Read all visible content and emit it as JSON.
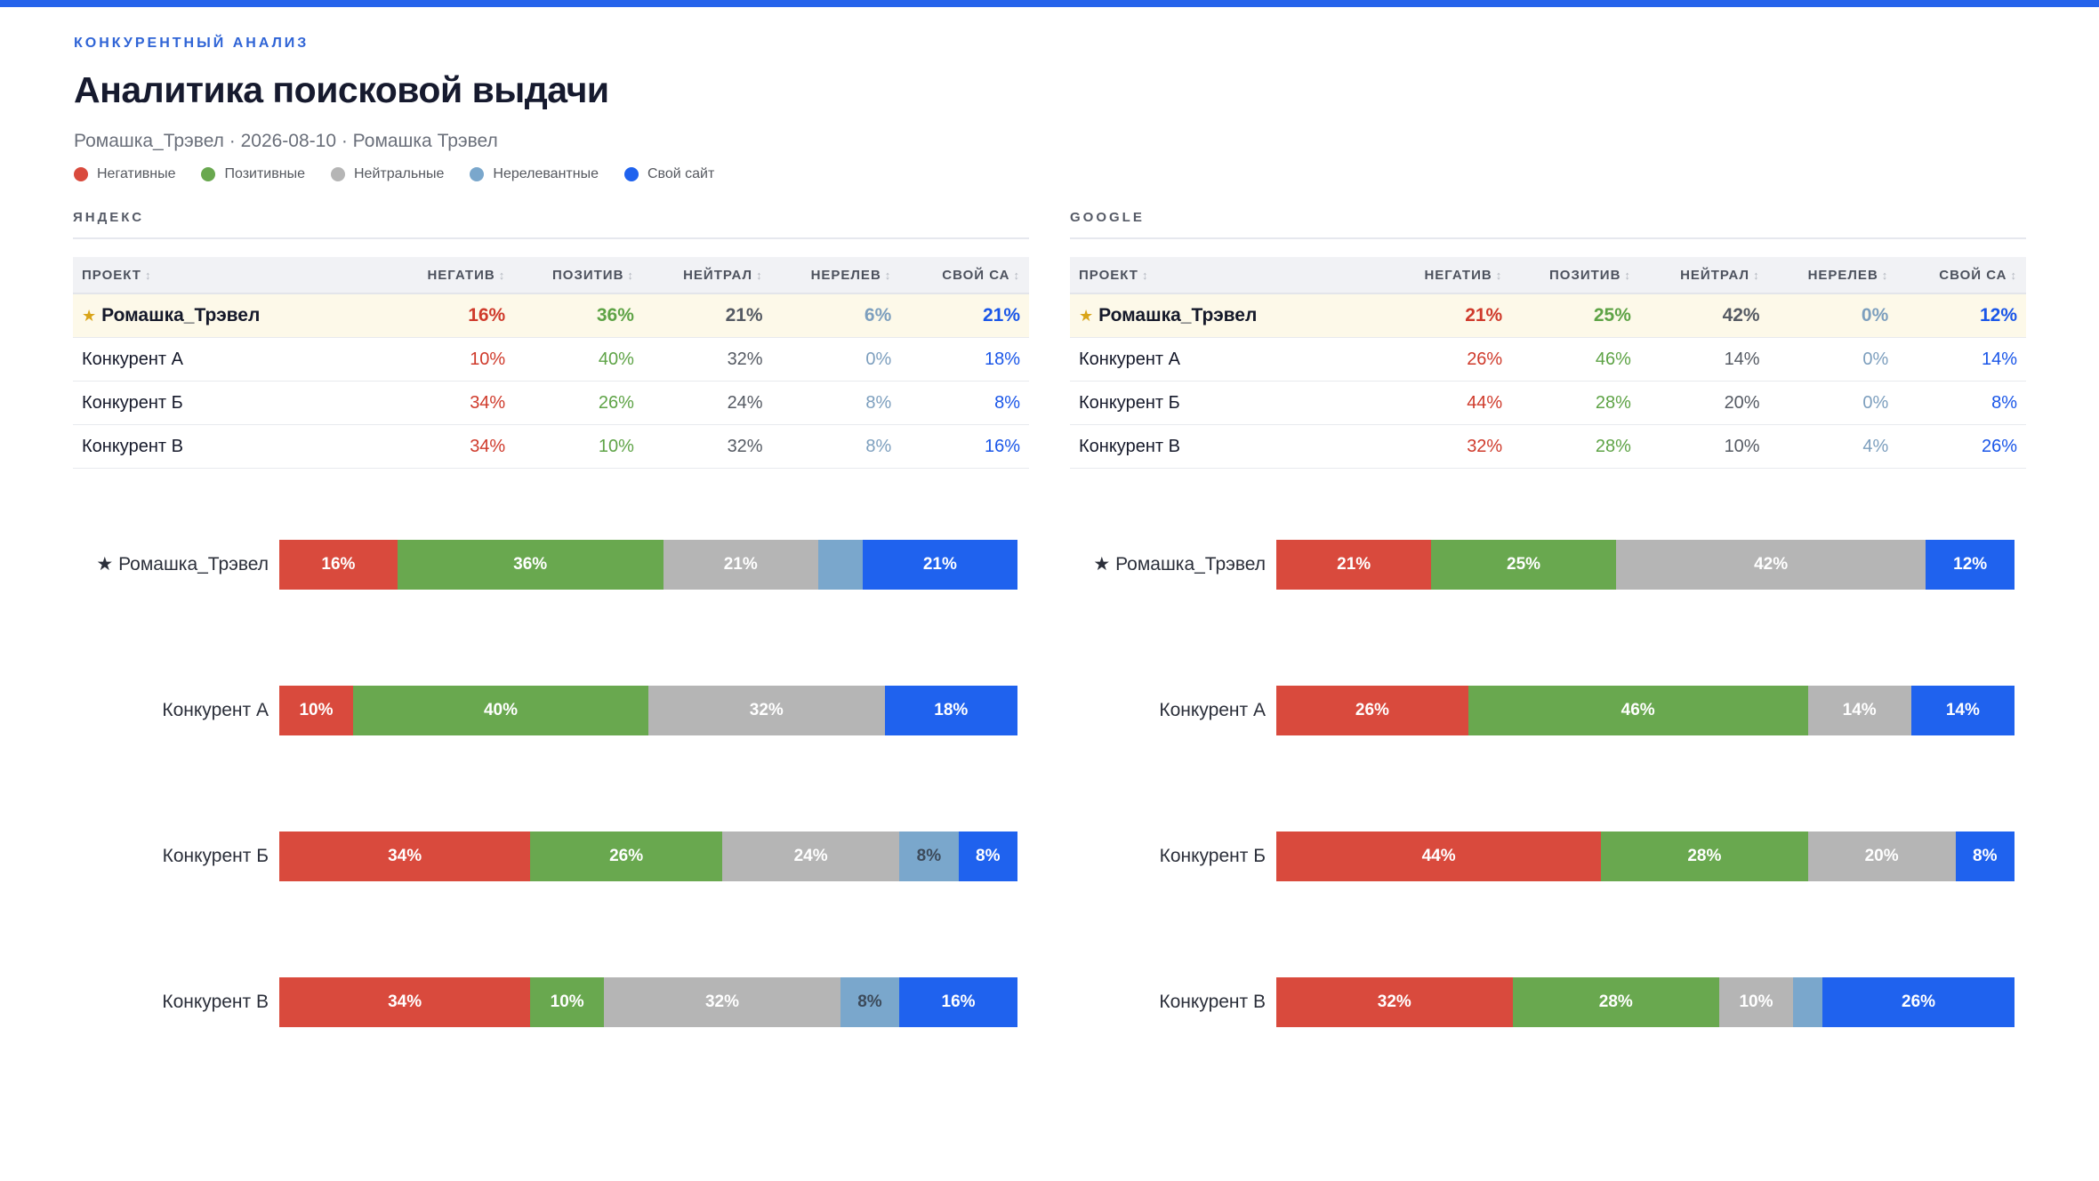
{
  "header": {
    "eyebrow": "КОНКУРЕНТНЫЙ АНАЛИЗ",
    "title": "Аналитика поисковой выдачи",
    "subtitle": "Ромашка_Трэвел · 2026-08-10 · Ромашка Трэвел"
  },
  "legend": [
    {
      "label": "Негативные",
      "color": "#d94a3d"
    },
    {
      "label": "Позитивные",
      "color": "#69a84f"
    },
    {
      "label": "Нейтральные",
      "color": "#b5b5b5"
    },
    {
      "label": "Нерелевантные",
      "color": "#7aa7cc"
    },
    {
      "label": "Свой сайт",
      "color": "#1f62ee"
    }
  ],
  "colors": {
    "neg": "#d94a3d",
    "pos": "#69a84f",
    "neu": "#b5b5b5",
    "irr": "#7aa7cc",
    "own": "#1f62ee",
    "accent": "#2563eb",
    "highlight_row": "#fdf9e9",
    "star": "#d9a418"
  },
  "star_icon": "★",
  "sort_icon": "↕",
  "columns": {
    "project": "ПРОЕКТ",
    "neg": "НЕГАТИВ",
    "pos": "ПОЗИТИВ",
    "neu": "НЕЙТРАЛ",
    "irr": "НЕРЕЛЕВ",
    "own": "СВОЙ СА"
  },
  "panels": [
    {
      "id": "yandex",
      "title": "ЯНДЕКС",
      "rows": [
        {
          "name": "Ромашка_Трэвел",
          "highlight": true,
          "neg": "16%",
          "pos": "36%",
          "neu": "21%",
          "irr": "6%",
          "own": "21%"
        },
        {
          "name": "Конкурент А",
          "highlight": false,
          "neg": "10%",
          "pos": "40%",
          "neu": "32%",
          "irr": "0%",
          "own": "18%"
        },
        {
          "name": "Конкурент Б",
          "highlight": false,
          "neg": "34%",
          "pos": "26%",
          "neu": "24%",
          "irr": "8%",
          "own": "8%"
        },
        {
          "name": "Конкурент В",
          "highlight": false,
          "neg": "34%",
          "pos": "10%",
          "neu": "32%",
          "irr": "8%",
          "own": "16%"
        }
      ]
    },
    {
      "id": "google",
      "title": "GOOGLE",
      "rows": [
        {
          "name": "Ромашка_Трэвел",
          "highlight": true,
          "neg": "21%",
          "pos": "25%",
          "neu": "42%",
          "irr": "0%",
          "own": "12%"
        },
        {
          "name": "Конкурент А",
          "highlight": false,
          "neg": "26%",
          "pos": "46%",
          "neu": "14%",
          "irr": "0%",
          "own": "14%"
        },
        {
          "name": "Конкурент Б",
          "highlight": false,
          "neg": "44%",
          "pos": "28%",
          "neu": "20%",
          "irr": "0%",
          "own": "8%"
        },
        {
          "name": "Конкурент В",
          "highlight": false,
          "neg": "32%",
          "pos": "28%",
          "neu": "10%",
          "irr": "4%",
          "own": "26%"
        }
      ]
    }
  ],
  "chart_data": [
    {
      "type": "bar",
      "stacked": true,
      "orientation": "horizontal",
      "title": "",
      "categories": [
        "★ Ромашка_Трэвел",
        "Конкурент А",
        "Конкурент Б",
        "Конкурент В"
      ],
      "series": [
        {
          "key": "neg",
          "name": "Негативные",
          "values": [
            16,
            10,
            34,
            34
          ]
        },
        {
          "key": "pos",
          "name": "Позитивные",
          "values": [
            36,
            40,
            26,
            10
          ]
        },
        {
          "key": "neu",
          "name": "Нейтральные",
          "values": [
            21,
            32,
            24,
            32
          ]
        },
        {
          "key": "irr",
          "name": "Нерелевантные",
          "values": [
            6,
            0,
            8,
            8
          ]
        },
        {
          "key": "own",
          "name": "Свой сайт",
          "values": [
            21,
            18,
            8,
            16
          ]
        }
      ],
      "segment_labels": [
        [
          "16%",
          "36%",
          "21%",
          "",
          "21%"
        ],
        [
          "10%",
          "40%",
          "32%",
          "",
          "18%"
        ],
        [
          "34%",
          "26%",
          "24%",
          "8%",
          "8%"
        ],
        [
          "34%",
          "10%",
          "32%",
          "8%",
          "16%"
        ]
      ],
      "legend": "top"
    },
    {
      "type": "bar",
      "stacked": true,
      "orientation": "horizontal",
      "title": "",
      "categories": [
        "★ Ромашка_Трэвел",
        "Конкурент А",
        "Конкурент Б",
        "Конкурент В"
      ],
      "series": [
        {
          "key": "neg",
          "name": "Негативные",
          "values": [
            21,
            26,
            44,
            32
          ]
        },
        {
          "key": "pos",
          "name": "Позитивные",
          "values": [
            25,
            46,
            28,
            28
          ]
        },
        {
          "key": "neu",
          "name": "Нейтральные",
          "values": [
            42,
            14,
            20,
            10
          ]
        },
        {
          "key": "irr",
          "name": "Нерелевантные",
          "values": [
            0,
            0,
            0,
            4
          ]
        },
        {
          "key": "own",
          "name": "Свой сайт",
          "values": [
            12,
            14,
            8,
            26
          ]
        }
      ],
      "segment_labels": [
        [
          "21%",
          "25%",
          "42%",
          "",
          "12%"
        ],
        [
          "26%",
          "46%",
          "14%",
          "",
          "14%"
        ],
        [
          "44%",
          "28%",
          "20%",
          "",
          "8%"
        ],
        [
          "32%",
          "28%",
          "10%",
          "",
          "26%"
        ]
      ],
      "legend": "top"
    }
  ]
}
